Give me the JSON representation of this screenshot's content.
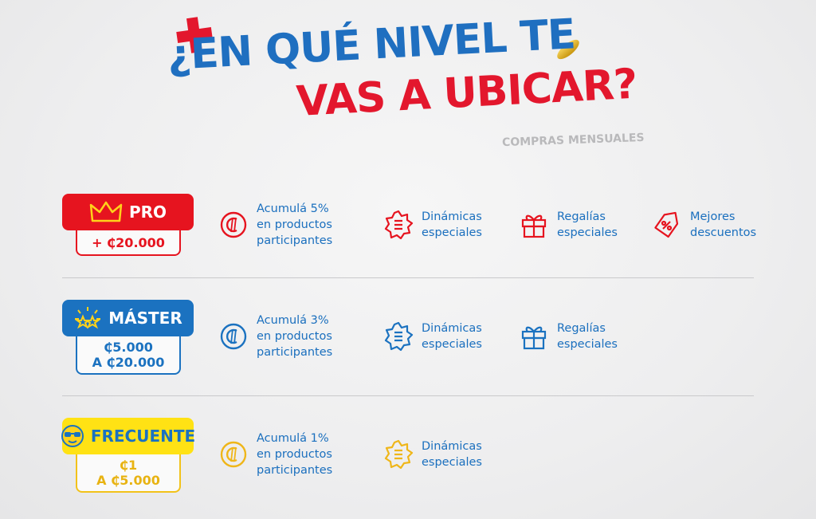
{
  "header": {
    "line1": "¿EN QUÉ NIVEL TE",
    "line2": "VAS A UBICAR?",
    "subtitle": "COMPRAS MENSUALES"
  },
  "tiers": [
    {
      "name": "PRO",
      "icon": "crown-icon",
      "color": "#e6141f",
      "price": "+ ₵20.000",
      "benefits": [
        {
          "icon": "colon-coin-icon",
          "text": "Acumulá 5%\nen productos\nparticipantes"
        },
        {
          "icon": "star-list-icon",
          "text": "Dinámicas\nespeciales"
        },
        {
          "icon": "gift-icon",
          "text": "Regalías\nespeciales"
        },
        {
          "icon": "discount-tag-icon",
          "text": "Mejores\ndescuentos"
        }
      ]
    },
    {
      "name": "MÁSTER",
      "icon": "sparkle-stars-icon",
      "color": "#1b72c0",
      "price_line1": "₵5.000",
      "price_line2": "A ₵20.000",
      "benefits": [
        {
          "icon": "colon-coin-icon",
          "text": "Acumulá 3%\nen productos\nparticipantes"
        },
        {
          "icon": "star-list-icon",
          "text": "Dinámicas\nespeciales"
        },
        {
          "icon": "gift-icon",
          "text": "Regalías\nespeciales"
        }
      ]
    },
    {
      "name": "FRECUENTE",
      "icon": "sunglasses-face-icon",
      "color": "#ffe214",
      "price_line1": "₵1",
      "price_line2": "A ₵5.000",
      "benefits": [
        {
          "icon": "colon-coin-icon",
          "text": "Acumulá 1%\nen productos\nparticipantes"
        },
        {
          "icon": "star-list-icon",
          "text": "Dinámicas\nespeciales"
        }
      ]
    }
  ]
}
